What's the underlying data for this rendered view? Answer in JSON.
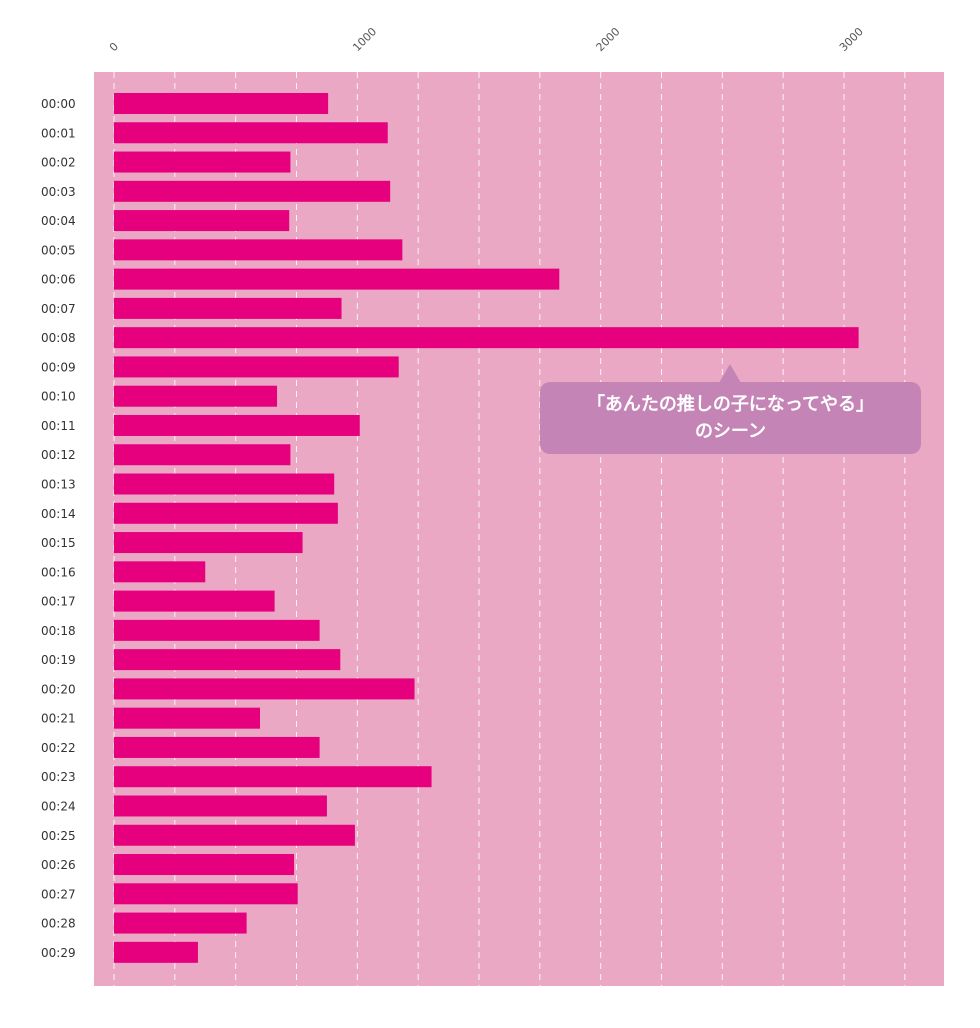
{
  "colors": {
    "plot_background": "#eaa8c4",
    "bar": "#e6007e",
    "grid": "#ffffff",
    "callout_background": "#c485b6",
    "callout_text": "#ffffff"
  },
  "annotation": {
    "line1": "「あんたの推しの子になってやる」",
    "line2": "のシーン"
  },
  "chart_data": {
    "type": "bar",
    "orientation": "horizontal",
    "title": "",
    "xlabel": "",
    "ylabel": "",
    "xlim": [
      0,
      3400
    ],
    "x_ticks": [
      0,
      1000,
      2000,
      3000
    ],
    "x_tick_labels": [
      "0",
      "1000",
      "2000",
      "3000"
    ],
    "x_axis_position": "top",
    "grid": "vertical dashed",
    "categories": [
      "00:00",
      "00:01",
      "00:02",
      "00:03",
      "00:04",
      "00:05",
      "00:06",
      "00:07",
      "00:08",
      "00:09",
      "00:10",
      "00:11",
      "00:12",
      "00:13",
      "00:14",
      "00:15",
      "00:16",
      "00:17",
      "00:18",
      "00:19",
      "00:20",
      "00:21",
      "00:22",
      "00:23",
      "00:24",
      "00:25",
      "00:26",
      "00:27",
      "00:28",
      "00:29"
    ],
    "values": [
      880,
      1125,
      725,
      1135,
      720,
      1185,
      1830,
      935,
      3060,
      1170,
      670,
      1010,
      725,
      905,
      920,
      775,
      375,
      660,
      845,
      930,
      1235,
      600,
      845,
      1305,
      875,
      990,
      740,
      755,
      545,
      345
    ]
  }
}
